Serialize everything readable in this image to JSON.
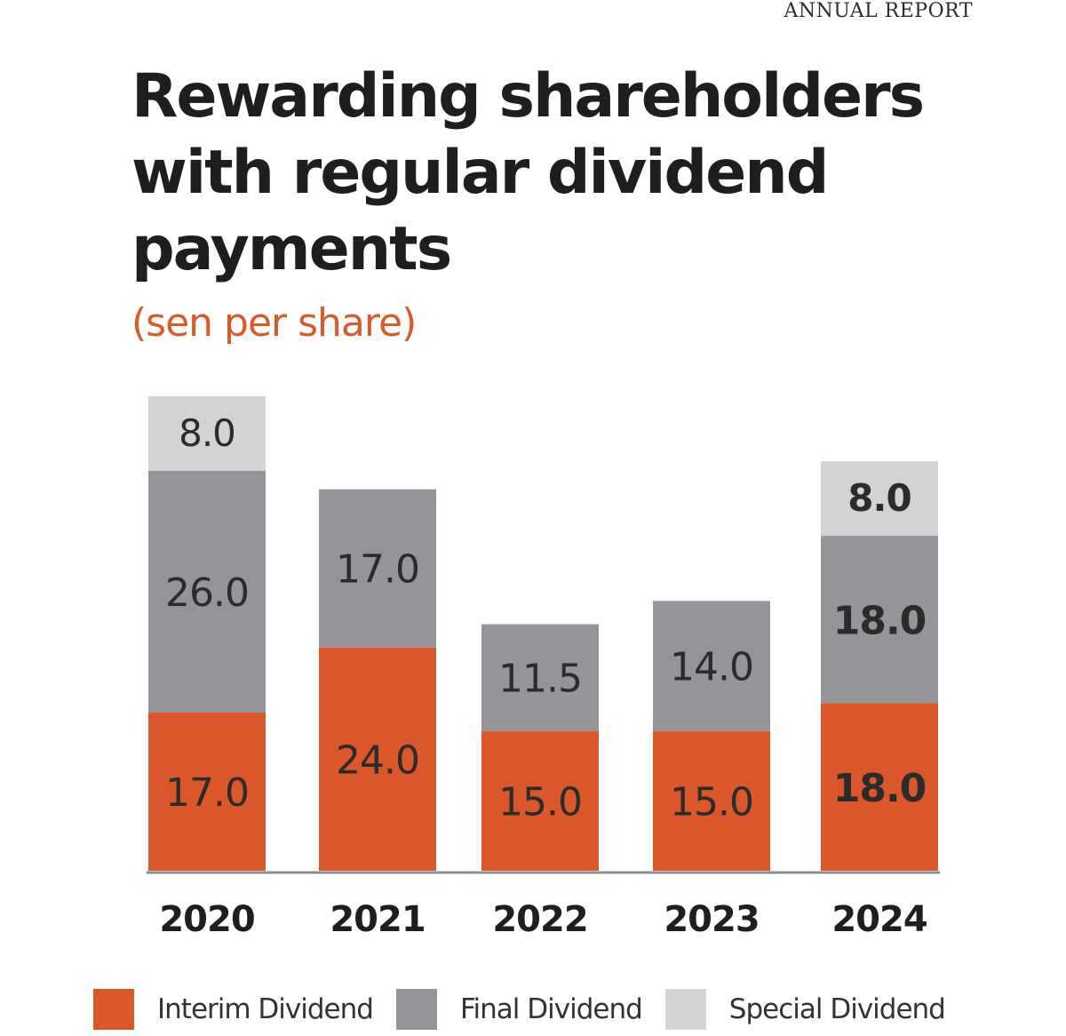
{
  "header": {
    "tag": "ANNUAL REPORT"
  },
  "title": "Rewarding shareholders with regular dividend payments",
  "subtitle": "(sen per share)",
  "colors": {
    "interim": "#d9572a",
    "final": "#939598",
    "special": "#d1d3d4",
    "axis": "#8c8c8c",
    "accent": "#d95a2b"
  },
  "chart_data": {
    "type": "bar",
    "stacked": true,
    "title": "Rewarding shareholders with regular dividend payments",
    "subtitle": "(sen per share)",
    "xlabel": "",
    "ylabel": "sen per share",
    "categories": [
      "2020",
      "2021",
      "2022",
      "2023",
      "2024"
    ],
    "series": [
      {
        "name": "Interim Dividend",
        "key": "interim",
        "values": [
          17.0,
          24.0,
          15.0,
          15.0,
          18.0
        ]
      },
      {
        "name": "Final Dividend",
        "key": "final",
        "values": [
          26.0,
          17.0,
          11.5,
          14.0,
          18.0
        ]
      },
      {
        "name": "Special Dividend",
        "key": "special",
        "values": [
          8.0,
          0,
          0,
          0,
          8.0
        ]
      }
    ],
    "labels": [
      [
        "17.0",
        "26.0",
        "8.0"
      ],
      [
        "24.0",
        "17.0",
        ""
      ],
      [
        "15.0",
        "11.5",
        ""
      ],
      [
        "15.0",
        "14.0",
        ""
      ],
      [
        "18.0",
        "18.0",
        "8.0"
      ]
    ],
    "highlight_category": "2024",
    "ylim": [
      0,
      52
    ],
    "grid": false,
    "y_axis_visible": false,
    "legend_position": "bottom"
  },
  "legend": [
    {
      "label": "Interim Dividend",
      "key": "interim"
    },
    {
      "label": "Final Dividend",
      "key": "final"
    },
    {
      "label": "Special Dividend",
      "key": "special"
    }
  ]
}
